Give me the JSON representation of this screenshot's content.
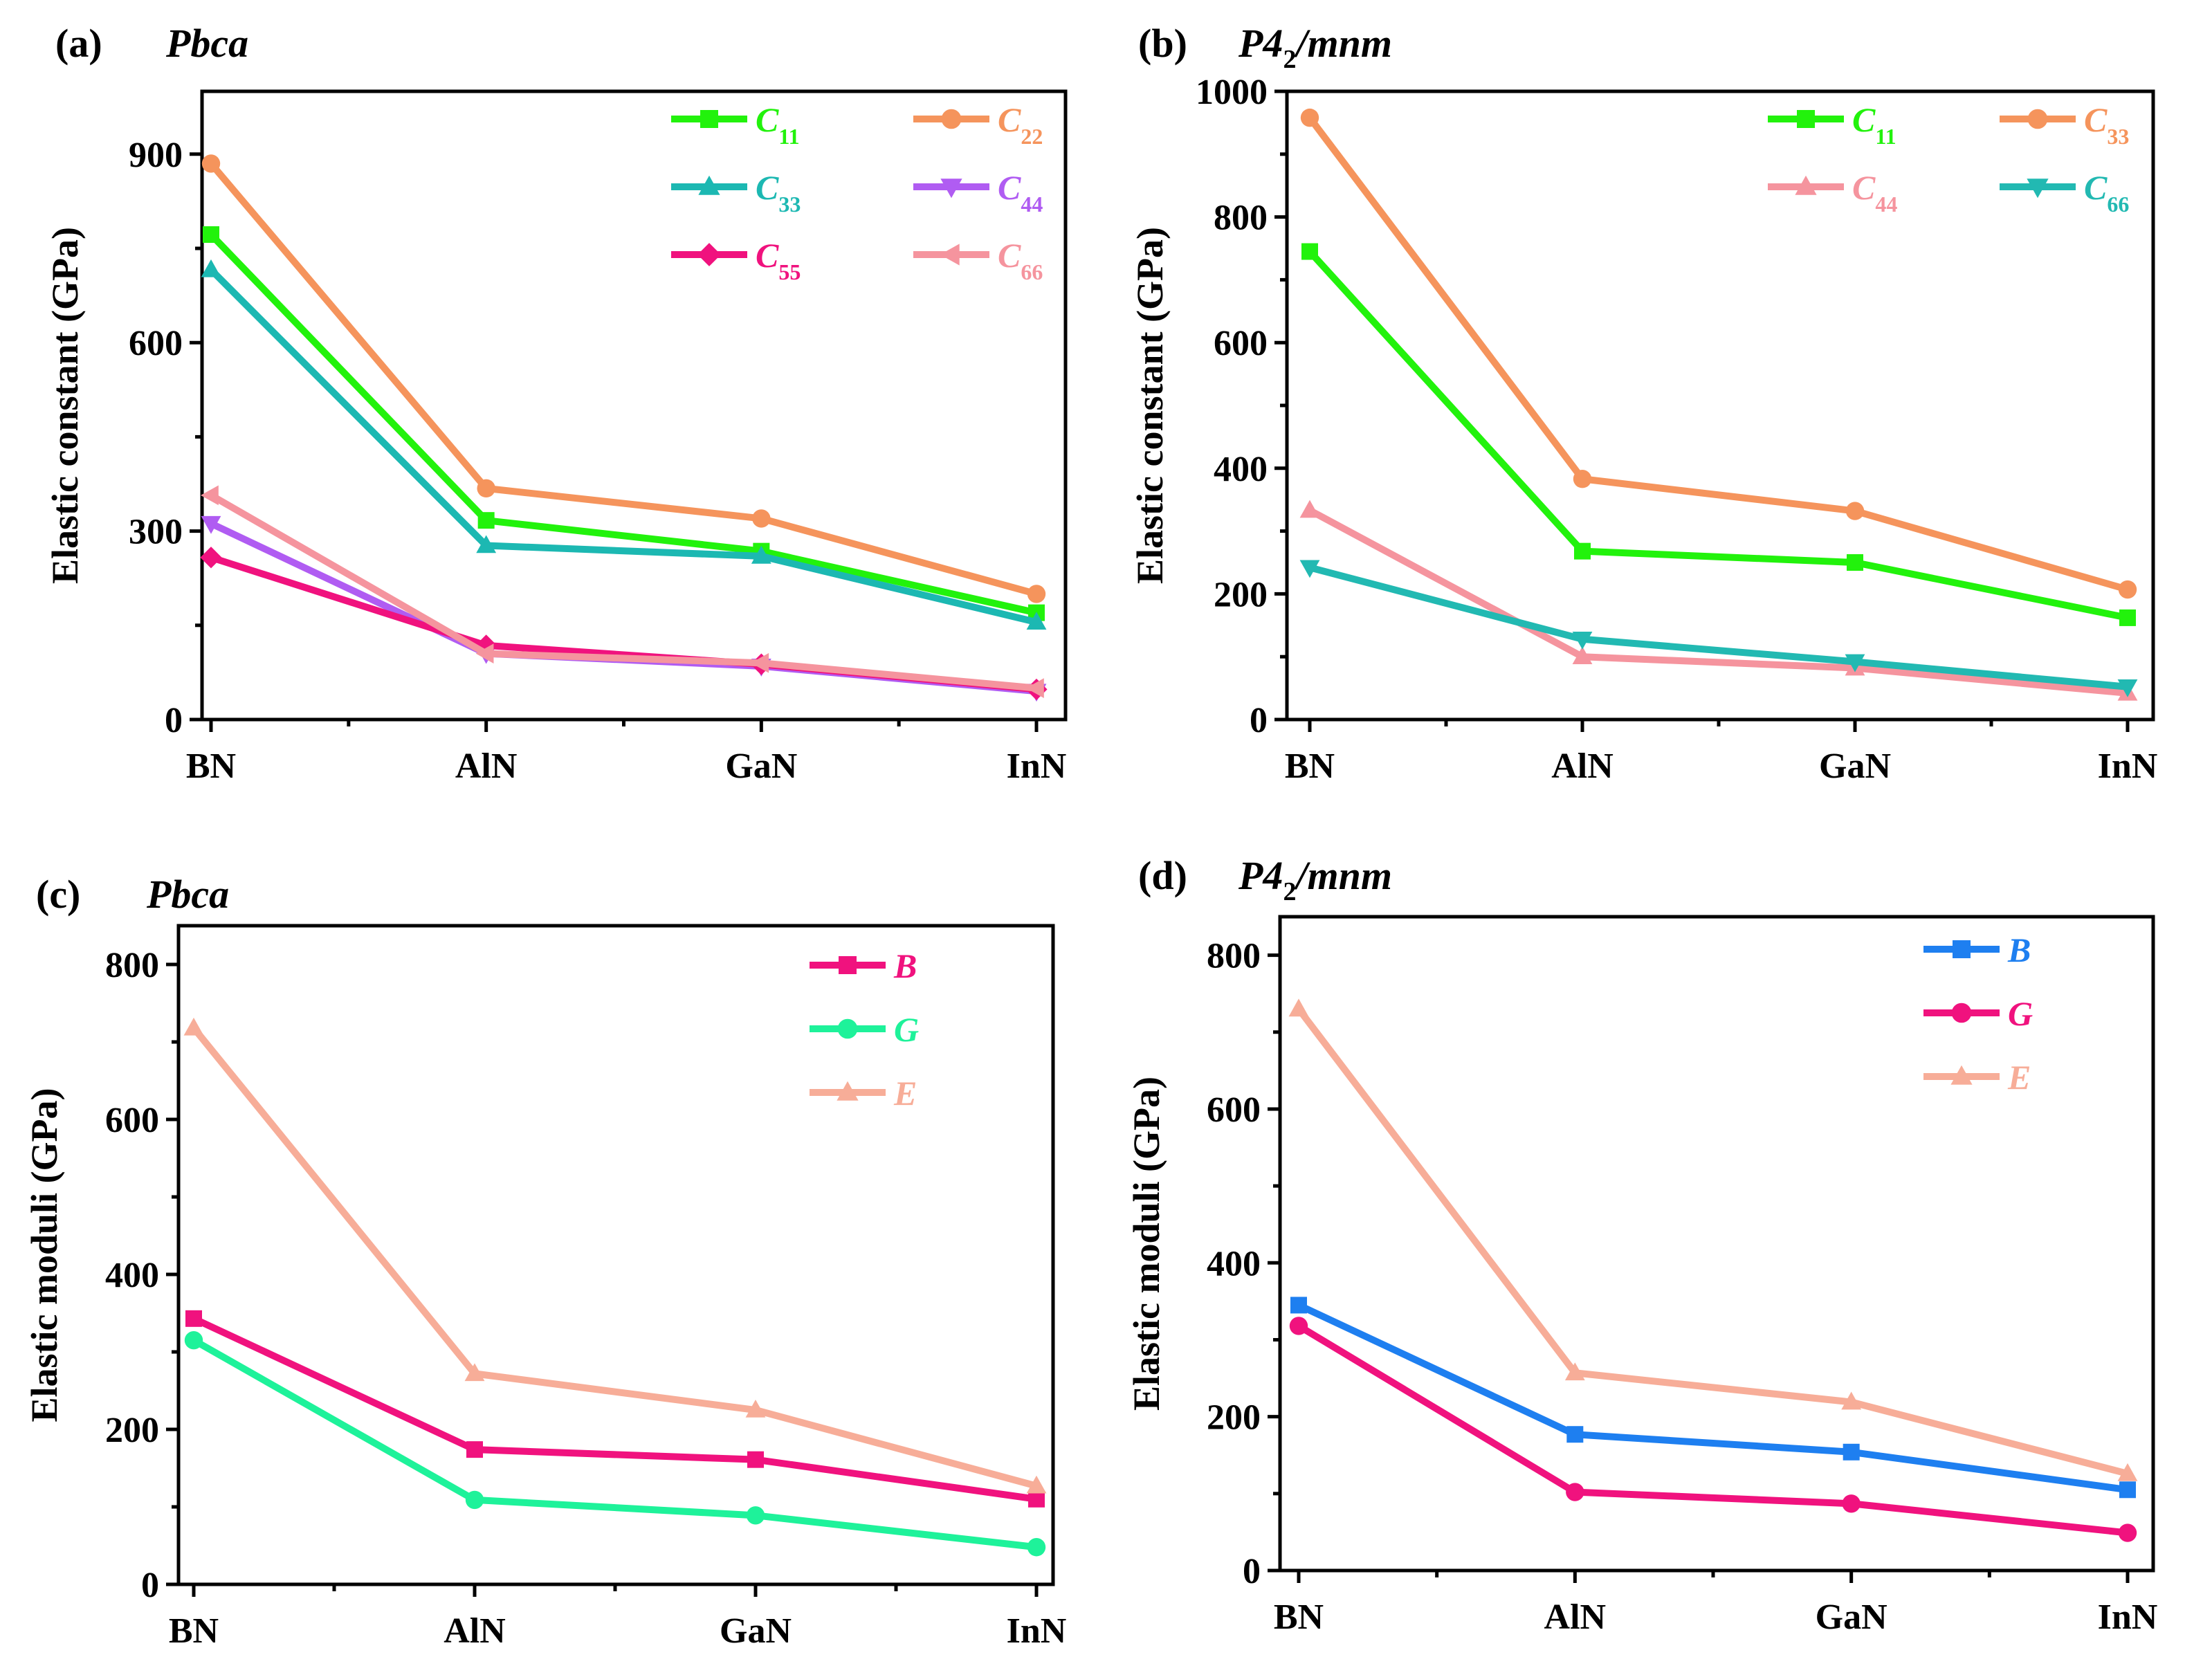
{
  "colors": {
    "green": "#22f20c",
    "orange": "#f5945c",
    "teal": "#1cb8b2",
    "purple": "#b05cf2",
    "magenta": "#f0127e",
    "pink": "#f5949e",
    "aqua": "#1ef29a",
    "salmon": "#f7ad98",
    "blue": "#1e7ff0",
    "cyan2": "#22b9b2"
  },
  "chart_data": [
    {
      "panel": "(a)",
      "space_group": "Pbca",
      "type": "line",
      "categories": [
        "BN",
        "AlN",
        "GaN",
        "InN"
      ],
      "ylabel": "Elastic constant (GPa)",
      "ylim": [
        0,
        1000
      ],
      "yticks": [
        "0",
        "300",
        "600",
        "900"
      ],
      "legend_position": "top-right",
      "series": [
        {
          "name": "C",
          "sub": "11",
          "color": "green",
          "marker": "square",
          "values": [
            772,
            317,
            268,
            170
          ]
        },
        {
          "name": "C",
          "sub": "22",
          "color": "orange",
          "marker": "circle",
          "values": [
            885,
            368,
            320,
            200
          ]
        },
        {
          "name": "C",
          "sub": "33",
          "color": "teal",
          "marker": "triangle-up",
          "values": [
            716,
            277,
            260,
            155
          ]
        },
        {
          "name": "C",
          "sub": "44",
          "color": "purple",
          "marker": "triangle-down",
          "values": [
            312,
            105,
            85,
            45
          ]
        },
        {
          "name": "C",
          "sub": "55",
          "color": "magenta",
          "marker": "diamond",
          "values": [
            258,
            118,
            88,
            48
          ]
        },
        {
          "name": "C",
          "sub": "66",
          "color": "pink",
          "marker": "triangle-left",
          "values": [
            357,
            105,
            90,
            50
          ]
        }
      ]
    },
    {
      "panel": "(b)",
      "space_group": "P4",
      "space_group_sub": "2",
      "space_group_rest": "/mnm",
      "type": "line",
      "categories": [
        "BN",
        "AlN",
        "GaN",
        "InN"
      ],
      "ylabel": "Elastic constant (GPa)",
      "ylim": [
        0,
        1000
      ],
      "yticks": [
        "0",
        "200",
        "400",
        "600",
        "800",
        "1000"
      ],
      "legend_position": "top-right",
      "series": [
        {
          "name": "C",
          "sub": "11",
          "color": "green",
          "marker": "square",
          "values": [
            745,
            268,
            250,
            162
          ]
        },
        {
          "name": "C",
          "sub": "33",
          "color": "orange",
          "marker": "circle",
          "values": [
            958,
            383,
            332,
            207
          ]
        },
        {
          "name": "C",
          "sub": "44",
          "color": "pink",
          "marker": "triangle-up",
          "values": [
            333,
            100,
            82,
            42
          ]
        },
        {
          "name": "C",
          "sub": "66",
          "color": "cyan2",
          "marker": "triangle-down",
          "values": [
            242,
            128,
            92,
            52
          ]
        }
      ]
    },
    {
      "panel": "(c)",
      "space_group": "Pbca",
      "type": "line",
      "categories": [
        "BN",
        "AlN",
        "GaN",
        "InN"
      ],
      "ylabel": "Elastic moduli (GPa)",
      "ylim": [
        0,
        850
      ],
      "yticks": [
        "0",
        "200",
        "400",
        "600",
        "800"
      ],
      "legend_position": "top-right",
      "series": [
        {
          "name": "B",
          "sub": "",
          "color": "magenta",
          "marker": "square",
          "values": [
            343,
            174,
            161,
            110
          ]
        },
        {
          "name": "G",
          "sub": "",
          "color": "aqua",
          "marker": "circle",
          "values": [
            315,
            109,
            89,
            48
          ]
        },
        {
          "name": "E",
          "sub": "",
          "color": "salmon",
          "marker": "triangle-up",
          "values": [
            718,
            272,
            225,
            127
          ]
        }
      ]
    },
    {
      "panel": "(d)",
      "space_group": "P4",
      "space_group_sub": "2",
      "space_group_rest": "/mnm",
      "type": "line",
      "categories": [
        "BN",
        "AlN",
        "GaN",
        "InN"
      ],
      "ylabel": "Elastic moduli (GPa)",
      "ylim": [
        0,
        850
      ],
      "yticks": [
        "0",
        "200",
        "400",
        "600",
        "800"
      ],
      "legend_position": "top-right",
      "series": [
        {
          "name": "B",
          "sub": "",
          "color": "blue",
          "marker": "square",
          "values": [
            345,
            177,
            154,
            105
          ]
        },
        {
          "name": "G",
          "sub": "",
          "color": "magenta",
          "marker": "circle",
          "values": [
            318,
            102,
            87,
            49
          ]
        },
        {
          "name": "E",
          "sub": "",
          "color": "salmon",
          "marker": "triangle-up",
          "values": [
            730,
            257,
            219,
            126
          ]
        }
      ]
    }
  ]
}
